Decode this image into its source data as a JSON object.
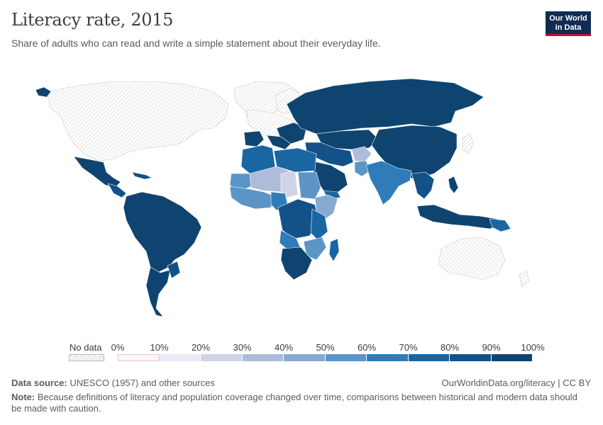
{
  "header": {
    "title": "Literacy rate, 2015",
    "subtitle": "Share of adults who can read and write a simple statement about their everyday life."
  },
  "logo": {
    "line1": "Our World",
    "line2": "in Data"
  },
  "legend": {
    "nodata_label": "No data",
    "ticks": [
      "0%",
      "10%",
      "20%",
      "30%",
      "40%",
      "50%",
      "60%",
      "70%",
      "80%",
      "90%",
      "100%"
    ],
    "colors": [
      "#fef5f7",
      "#ebe8f4",
      "#d1d3e6",
      "#adbcd9",
      "#86aad0",
      "#5b95c7",
      "#2f7cb8",
      "#1a66a3",
      "#135289",
      "#0f4470"
    ]
  },
  "footer": {
    "source_label": "Data source:",
    "source_text": " UNESCO (1957) and other sources",
    "url": "OurWorldinData.org/literacy | CC BY",
    "note_label": "Note:",
    "note_text": " Because definitions of literacy and population coverage changed over time, comparisons between historical and modern data should be made with caution."
  },
  "map": {
    "nodata_color": "#ffffff",
    "hatch_color": "#d0d0d0",
    "border_color": "#ffffff"
  }
}
